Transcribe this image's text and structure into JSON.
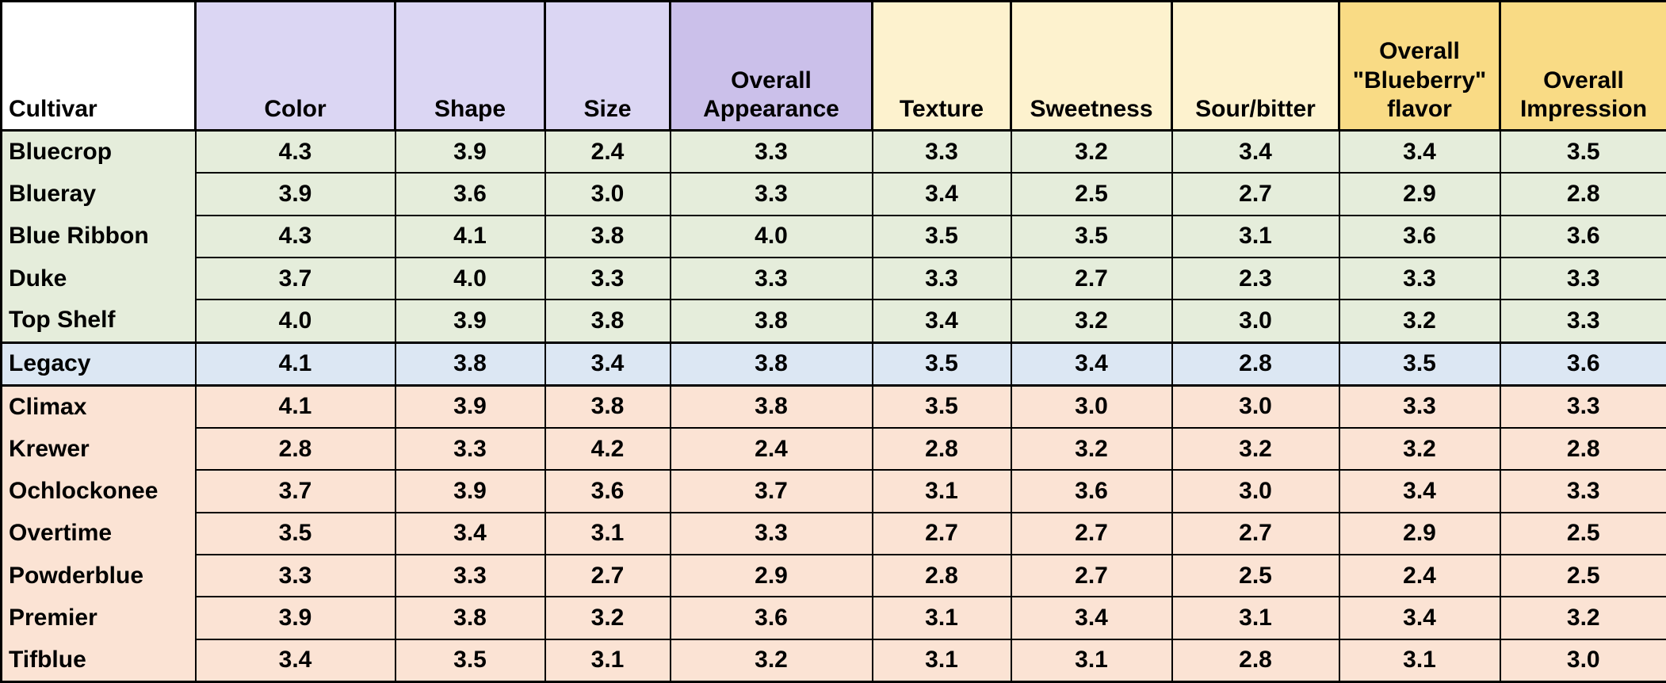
{
  "colors": {
    "header_purple_light": "#dbd6f3",
    "header_purple_dark": "#cbc0ea",
    "header_yellow_light": "#fdf2ce",
    "header_gold": "#f9db85",
    "row_group_green": "#e5eddb",
    "row_group_blue": "#dce7f3",
    "row_group_pink": "#fbe3d4",
    "grid_border": "#000000",
    "corner_cell_white": "#ffffff"
  },
  "chart_data": {
    "type": "table",
    "columns": [
      "Cultivar",
      "Color",
      "Shape",
      "Size",
      "Overall Appearance",
      "Texture",
      "Sweetness",
      "Sour/bitter",
      "Overall \"Blueberry\" flavor",
      "Overall Impression"
    ],
    "rows": [
      {
        "cultivar": "Bluecrop",
        "group": "green",
        "values": [
          "4.3",
          "3.9",
          "2.4",
          "3.3",
          "3.3",
          "3.2",
          "3.4",
          "3.4",
          "3.5"
        ]
      },
      {
        "cultivar": "Blueray",
        "group": "green",
        "values": [
          "3.9",
          "3.6",
          "3.0",
          "3.3",
          "3.4",
          "2.5",
          "2.7",
          "2.9",
          "2.8"
        ]
      },
      {
        "cultivar": "Blue Ribbon",
        "group": "green",
        "values": [
          "4.3",
          "4.1",
          "3.8",
          "4.0",
          "3.5",
          "3.5",
          "3.1",
          "3.6",
          "3.6"
        ]
      },
      {
        "cultivar": "Duke",
        "group": "green",
        "values": [
          "3.7",
          "4.0",
          "3.3",
          "3.3",
          "3.3",
          "2.7",
          "2.3",
          "3.3",
          "3.3"
        ]
      },
      {
        "cultivar": "Top Shelf",
        "group": "green",
        "values": [
          "4.0",
          "3.9",
          "3.8",
          "3.8",
          "3.4",
          "3.2",
          "3.0",
          "3.2",
          "3.3"
        ]
      },
      {
        "cultivar": "Legacy",
        "group": "blue",
        "values": [
          "4.1",
          "3.8",
          "3.4",
          "3.8",
          "3.5",
          "3.4",
          "2.8",
          "3.5",
          "3.6"
        ]
      },
      {
        "cultivar": "Climax",
        "group": "pink",
        "values": [
          "4.1",
          "3.9",
          "3.8",
          "3.8",
          "3.5",
          "3.0",
          "3.0",
          "3.3",
          "3.3"
        ]
      },
      {
        "cultivar": "Krewer",
        "group": "pink",
        "values": [
          "2.8",
          "3.3",
          "4.2",
          "2.4",
          "2.8",
          "3.2",
          "3.2",
          "3.2",
          "2.8"
        ]
      },
      {
        "cultivar": "Ochlockonee",
        "group": "pink",
        "values": [
          "3.7",
          "3.9",
          "3.6",
          "3.7",
          "3.1",
          "3.6",
          "3.0",
          "3.4",
          "3.3"
        ]
      },
      {
        "cultivar": "Overtime",
        "group": "pink",
        "values": [
          "3.5",
          "3.4",
          "3.1",
          "3.3",
          "2.7",
          "2.7",
          "2.7",
          "2.9",
          "2.5"
        ]
      },
      {
        "cultivar": "Powderblue",
        "group": "pink",
        "values": [
          "3.3",
          "3.3",
          "2.7",
          "2.9",
          "2.8",
          "2.7",
          "2.5",
          "2.4",
          "2.5"
        ]
      },
      {
        "cultivar": "Premier",
        "group": "pink",
        "values": [
          "3.9",
          "3.8",
          "3.2",
          "3.6",
          "3.1",
          "3.4",
          "3.1",
          "3.4",
          "3.2"
        ]
      },
      {
        "cultivar": "Tifblue",
        "group": "pink",
        "values": [
          "3.4",
          "3.5",
          "3.1",
          "3.2",
          "3.1",
          "3.1",
          "2.8",
          "3.1",
          "3.0"
        ]
      }
    ]
  }
}
